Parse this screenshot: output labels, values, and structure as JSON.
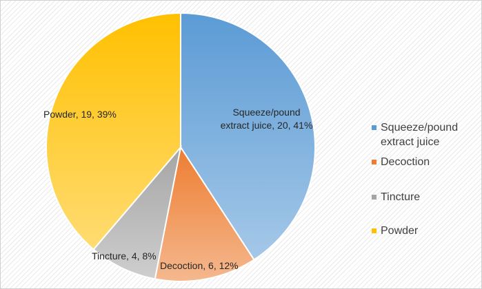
{
  "chart_data": {
    "type": "pie",
    "categories": [
      "Squeeze/pound extract juice",
      "Decoction",
      "Tincture",
      "Powder"
    ],
    "values": [
      20,
      6,
      4,
      19
    ],
    "percents": [
      "41%",
      "12%",
      "8%",
      "39%"
    ],
    "data_labels": [
      "Squeeze/pound extract juice, 20, 41%",
      "Decoction, 6, 12%",
      "Tincture, 4, 8%",
      "Powder, 19, 39%"
    ],
    "colors": [
      "#5b9bd5",
      "#ed7d31",
      "#a5a5a5",
      "#ffc000"
    ],
    "legend": {
      "position": "right",
      "entries": [
        "Squeeze/pound extract juice",
        "Decoction",
        "Tincture",
        "Powder"
      ]
    },
    "start_angle": "12 o'clock, clockwise"
  }
}
